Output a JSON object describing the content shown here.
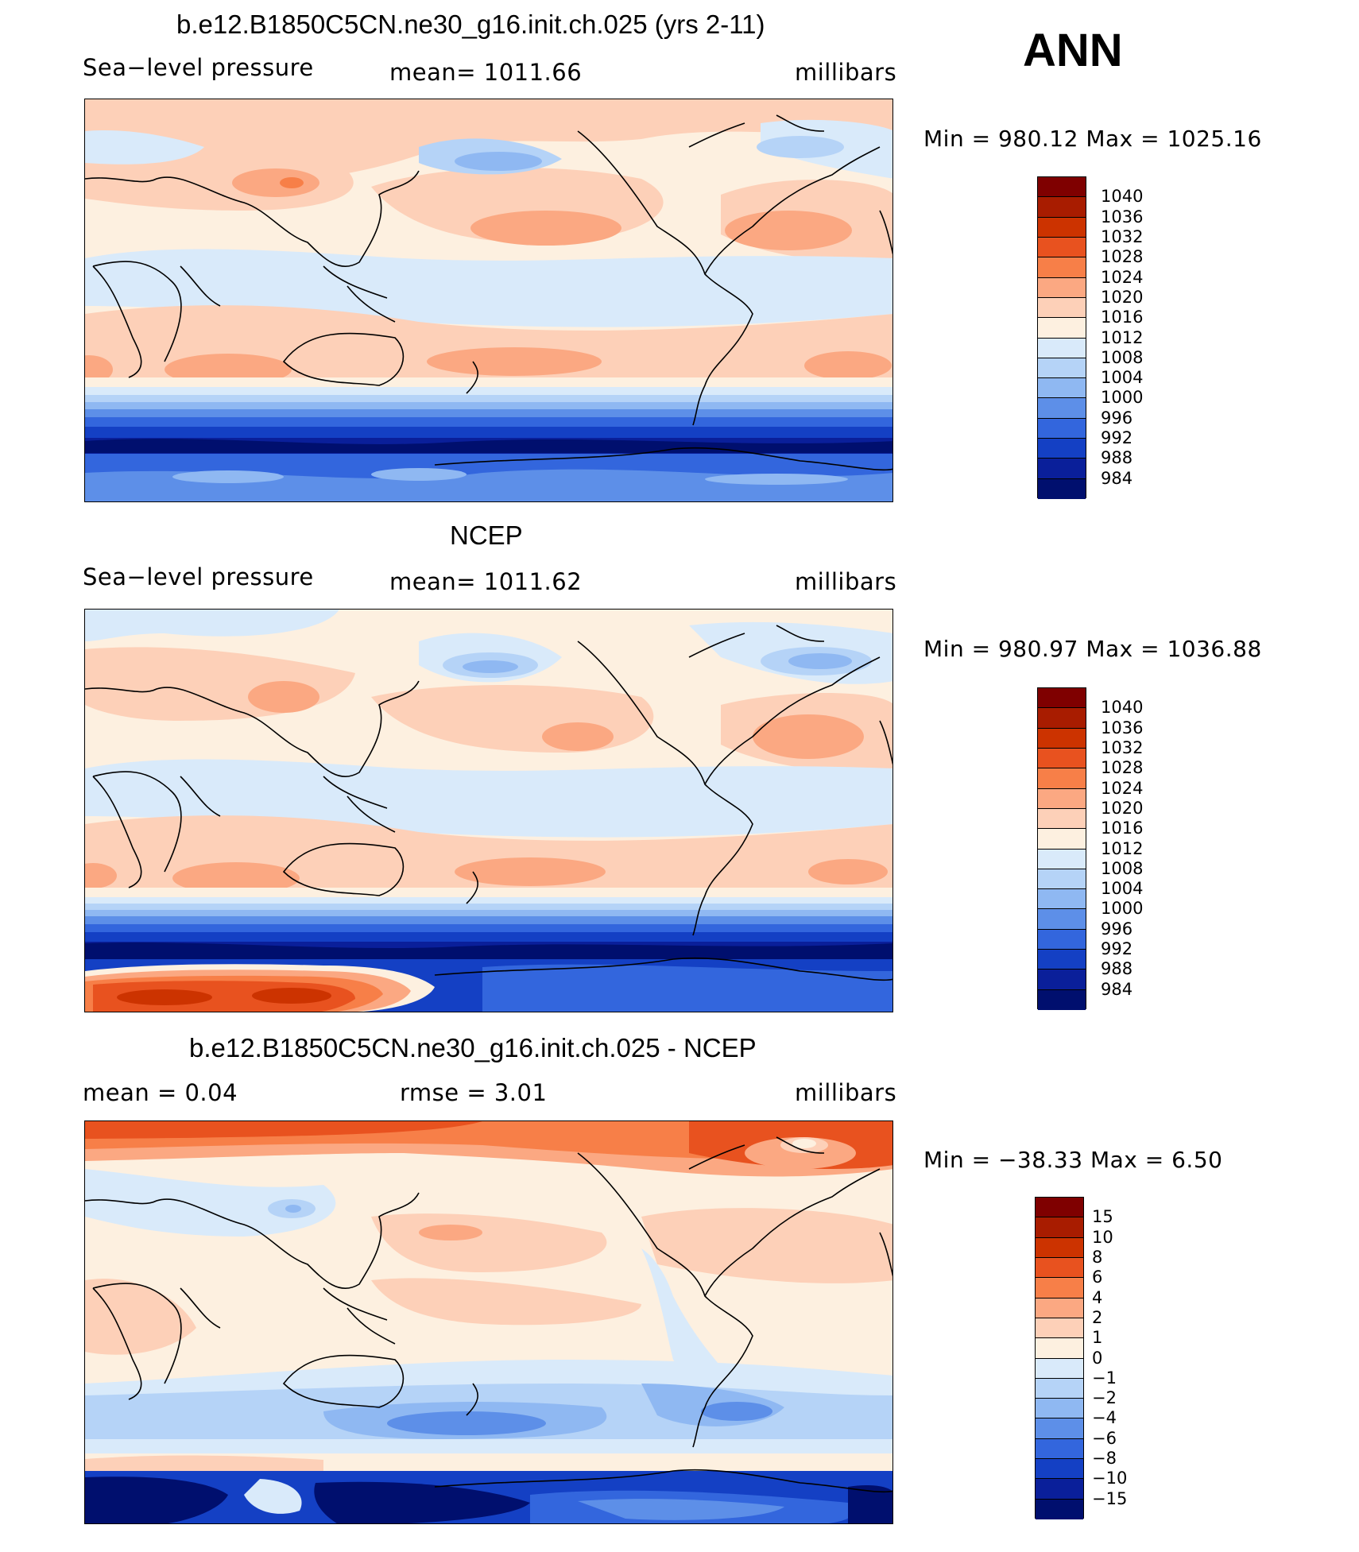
{
  "page": {
    "season": "ANN"
  },
  "panels": [
    {
      "title": "b.e12.B1850C5CN.ne30_g16.init.ch.025 (yrs 2-11)",
      "left_label": "Sea−level pressure",
      "center_label": "mean=  1011.66",
      "units": "millibars",
      "minmax": "Min  =  980.12  Max  =  1025.16",
      "colorbar_levels": [
        "1040",
        "1036",
        "1032",
        "1028",
        "1024",
        "1020",
        "1016",
        "1012",
        "1008",
        "1004",
        "1000",
        "996",
        "992",
        "988",
        "984"
      ],
      "colorbar_colors": [
        "#7f0000",
        "#a81c00",
        "#cc3300",
        "#e8521f",
        "#f77f48",
        "#fba882",
        "#fdd0b8",
        "#fdf0e0",
        "#d9eafa",
        "#b5d3f7",
        "#8fb8f2",
        "#5d8fe8",
        "#3366dd",
        "#1440c4",
        "#0a1f9a",
        "#000f6e"
      ],
      "map_id": "A"
    },
    {
      "title": "NCEP",
      "left_label": "Sea−level pressure",
      "center_label": "mean=  1011.62",
      "units": "millibars",
      "minmax": "Min  =  980.97  Max  =  1036.88",
      "colorbar_levels": [
        "1040",
        "1036",
        "1032",
        "1028",
        "1024",
        "1020",
        "1016",
        "1012",
        "1008",
        "1004",
        "1000",
        "996",
        "992",
        "988",
        "984"
      ],
      "colorbar_colors": [
        "#7f0000",
        "#a81c00",
        "#cc3300",
        "#e8521f",
        "#f77f48",
        "#fba882",
        "#fdd0b8",
        "#fdf0e0",
        "#d9eafa",
        "#b5d3f7",
        "#8fb8f2",
        "#5d8fe8",
        "#3366dd",
        "#1440c4",
        "#0a1f9a",
        "#000f6e"
      ],
      "map_id": "B"
    },
    {
      "title": "b.e12.B1850C5CN.ne30_g16.init.ch.025 - NCEP",
      "left_label": "mean  =     0.04",
      "center_label": "rmse  =     3.01",
      "units": "millibars",
      "minmax": "Min  =  −38.33  Max  =     6.50",
      "colorbar_levels": [
        "15",
        "10",
        "8",
        "6",
        "4",
        "2",
        "1",
        "0",
        "−1",
        "−2",
        "−4",
        "−6",
        "−8",
        "−10",
        "−15"
      ],
      "colorbar_colors": [
        "#7f0000",
        "#a81c00",
        "#cc3300",
        "#e8521f",
        "#f77f48",
        "#fba882",
        "#fdd0b8",
        "#fdf0e0",
        "#d9eafa",
        "#b5d3f7",
        "#8fb8f2",
        "#5d8fe8",
        "#3366dd",
        "#1440c4",
        "#0a1f9a",
        "#000f6e"
      ],
      "map_id": "C"
    }
  ]
}
